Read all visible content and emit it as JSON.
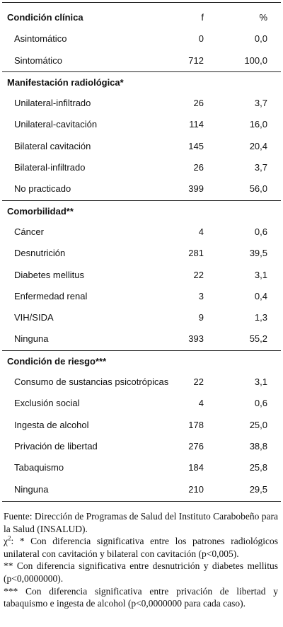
{
  "table": {
    "header": {
      "label": "Condición clínica",
      "f": "f",
      "pct": "%"
    },
    "sections": [
      {
        "title": null,
        "rows": [
          [
            "Asintomático",
            "0",
            "0,0"
          ],
          [
            "Sintomático",
            "712",
            "100,0"
          ]
        ]
      },
      {
        "title": "Manifestación radiológica*",
        "rows": [
          [
            "Unilateral-infiltrado",
            "26",
            "3,7"
          ],
          [
            "Unilateral-cavitación",
            "114",
            "16,0"
          ],
          [
            "Bilateral cavitación",
            "145",
            "20,4"
          ],
          [
            "Bilateral-infiltrado",
            "26",
            "3,7"
          ],
          [
            "No practicado",
            "399",
            "56,0"
          ]
        ]
      },
      {
        "title": "Comorbilidad**",
        "rows": [
          [
            "Cáncer",
            "4",
            "0,6"
          ],
          [
            "Desnutrición",
            "281",
            "39,5"
          ],
          [
            "Diabetes mellitus",
            "22",
            "3,1"
          ],
          [
            "Enfermedad renal",
            "3",
            "0,4"
          ],
          [
            "VIH/SIDA",
            "9",
            "1,3"
          ],
          [
            "Ninguna",
            "393",
            "55,2"
          ]
        ]
      },
      {
        "title": "Condición de riesgo***",
        "rows": [
          [
            "Consumo de sustancias psicotrópicas",
            "22",
            "3,1"
          ],
          [
            "Exclusión social",
            "4",
            "0,6"
          ],
          [
            "Ingesta de alcohol",
            "178",
            "25,0"
          ],
          [
            "Privación de libertad",
            "276",
            "38,8"
          ],
          [
            "Tabaquismo",
            "184",
            "25,8"
          ],
          [
            "Ninguna",
            "210",
            "29,5"
          ]
        ]
      }
    ]
  },
  "notes": {
    "source": "Fuente: Dirección de Programas de Salud del Instituto Carabobeño para la Salud (INSALUD).",
    "chi_symbol": "χ",
    "chi_sup": "2",
    "chi_text": ": * Con diferencia significativa entre los patrones radiológicos unilateral con cavitación y bilateral con cavitación (p<0,005).",
    "note2": "** Con diferencia significativa entre desnutrición y diabetes mellitus (p<0,0000000).",
    "note3": "*** Con diferencia significativa entre privación de libertad y tabaquismo e ingesta de alcohol (p<0,0000000 para cada caso)."
  }
}
